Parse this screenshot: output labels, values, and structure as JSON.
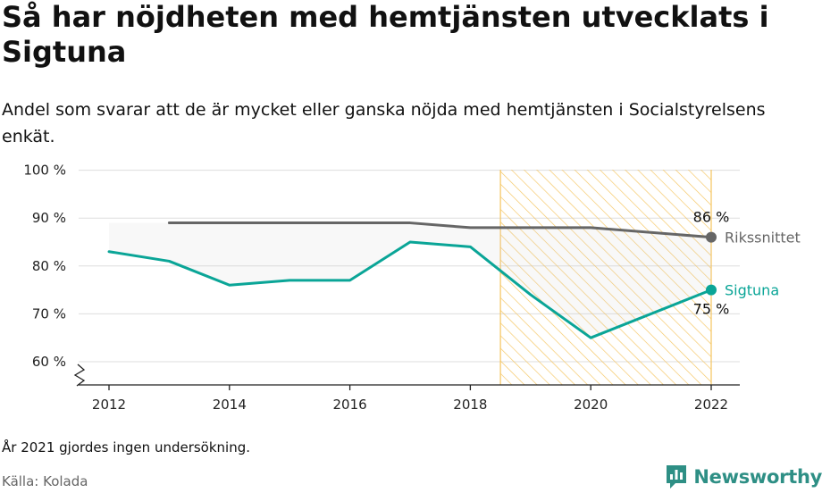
{
  "header": {
    "title": "Så har nöjdheten med hemtjänsten utvecklats i Sigtuna",
    "subtitle": "Andel som svarar att de är mycket eller ganska nöjda med hemtjänsten i Socialstyrelsens enkät."
  },
  "footer": {
    "note": "År 2021 gjordes ingen undersökning.",
    "source": "Källa: Kolada",
    "brand": "Newsworthy"
  },
  "colors": {
    "sigtuna": "#0aa597",
    "riks": "#666666",
    "highlight": "#f5c45e",
    "grid": "#dddddd"
  },
  "chart_data": {
    "type": "line",
    "x": [
      2012,
      2013,
      2014,
      2015,
      2016,
      2017,
      2018,
      2019,
      2020,
      2022
    ],
    "xticks": [
      "2012",
      "2014",
      "2016",
      "2018",
      "2020",
      "2022"
    ],
    "yticks": [
      "60 %",
      "70 %",
      "80 %",
      "90 %",
      "100 %"
    ],
    "xlim": [
      2011.5,
      2022.5
    ],
    "ylim": [
      55,
      100
    ],
    "axis_break": true,
    "highlight_range": [
      2018.5,
      2022
    ],
    "series": [
      {
        "name": "Rikssnittet",
        "key": "riks",
        "x": [
          2013,
          2014,
          2015,
          2016,
          2017,
          2018,
          2019,
          2020,
          2022
        ],
        "values": [
          89,
          89,
          89,
          89,
          89,
          88,
          88,
          88,
          86
        ],
        "end_label": "86 %"
      },
      {
        "name": "Sigtuna",
        "key": "sigtuna",
        "x": [
          2012,
          2013,
          2014,
          2015,
          2016,
          2017,
          2018,
          2019,
          2020,
          2022
        ],
        "values": [
          83,
          81,
          76,
          77,
          77,
          85,
          84,
          74,
          65,
          75
        ],
        "end_label": "75 %"
      }
    ]
  }
}
